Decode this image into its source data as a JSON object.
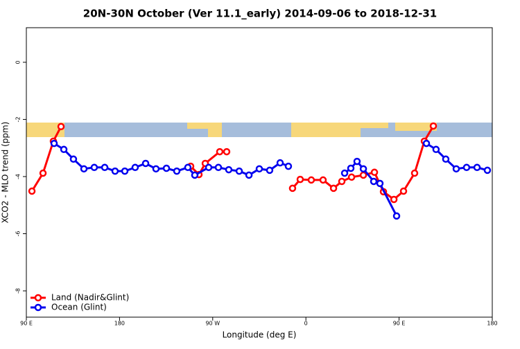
{
  "chart_data": {
    "type": "line",
    "title": "20N-30N October (Ver 11.1_early)   2014-09-06 to 2018-12-31",
    "xlabel": "Longitude (deg E)",
    "ylabel": "XCO2 - MLO trend (ppm)",
    "xlim": [
      90,
      540
    ],
    "ylim": [
      -8.92,
      1.21
    ],
    "xticks": [
      {
        "value": 90,
        "label": "90 E"
      },
      {
        "value": 180,
        "label": "180"
      },
      {
        "value": 270,
        "label": "90 W"
      },
      {
        "value": 360,
        "label": "0"
      },
      {
        "value": 450,
        "label": "90 E"
      },
      {
        "value": 540,
        "label": "180"
      }
    ],
    "yticks": [
      0,
      -2,
      -4,
      -6,
      -8
    ],
    "legend": "bottom-left",
    "series": [
      {
        "name": "Land (Nadir&Glint)",
        "color": "#ff0000",
        "x": [
          95.4,
          106.1,
          116.1,
          123.5,
          null,
          248.7,
          256.7,
          262.8,
          276.8,
          283.5,
          null,
          347.1,
          354.5,
          365.2,
          376.6,
          386.7,
          394.7,
          404.1,
          415.5,
          426.2,
          434.9,
          445,
          454.3,
          465,
          474.4,
          483.1
        ],
        "values": [
          -4.51,
          -3.88,
          -2.76,
          -2.25,
          null,
          -3.64,
          -3.93,
          -3.54,
          -3.13,
          -3.13,
          null,
          -4.41,
          -4.1,
          -4.12,
          -4.12,
          -4.41,
          -4.17,
          -4.02,
          -3.95,
          -3.85,
          -4.53,
          -4.8,
          -4.51,
          -3.88,
          -2.76,
          -2.23
        ]
      },
      {
        "name": "Ocean (Glint)",
        "color": "#0000ee",
        "x": [
          116.8,
          126.2,
          135.5,
          145.6,
          155.6,
          165.7,
          175.7,
          185.1,
          195.1,
          205.2,
          215.2,
          225.3,
          235.3,
          246,
          252.7,
          266.1,
          275.5,
          285.5,
          295.6,
          305,
          315,
          325,
          335.1,
          343.1,
          null,
          397.4,
          403.4,
          409.4,
          415.5,
          425.5,
          431.5,
          447.6,
          null,
          476.4,
          485.7,
          495.1,
          505.2,
          515.2,
          525.3,
          535.3
        ],
        "values": [
          -2.84,
          -3.05,
          -3.39,
          -3.73,
          -3.68,
          -3.68,
          -3.81,
          -3.81,
          -3.68,
          -3.54,
          -3.73,
          -3.71,
          -3.81,
          -3.68,
          -3.95,
          -3.68,
          -3.68,
          -3.76,
          -3.81,
          -3.95,
          -3.73,
          -3.78,
          -3.52,
          -3.64,
          null,
          -3.88,
          -3.71,
          -3.47,
          -3.73,
          -4.17,
          -4.24,
          -5.38,
          null,
          -2.84,
          -3.05,
          -3.39,
          -3.73,
          -3.68,
          -3.68,
          -3.78
        ]
      }
    ]
  }
}
